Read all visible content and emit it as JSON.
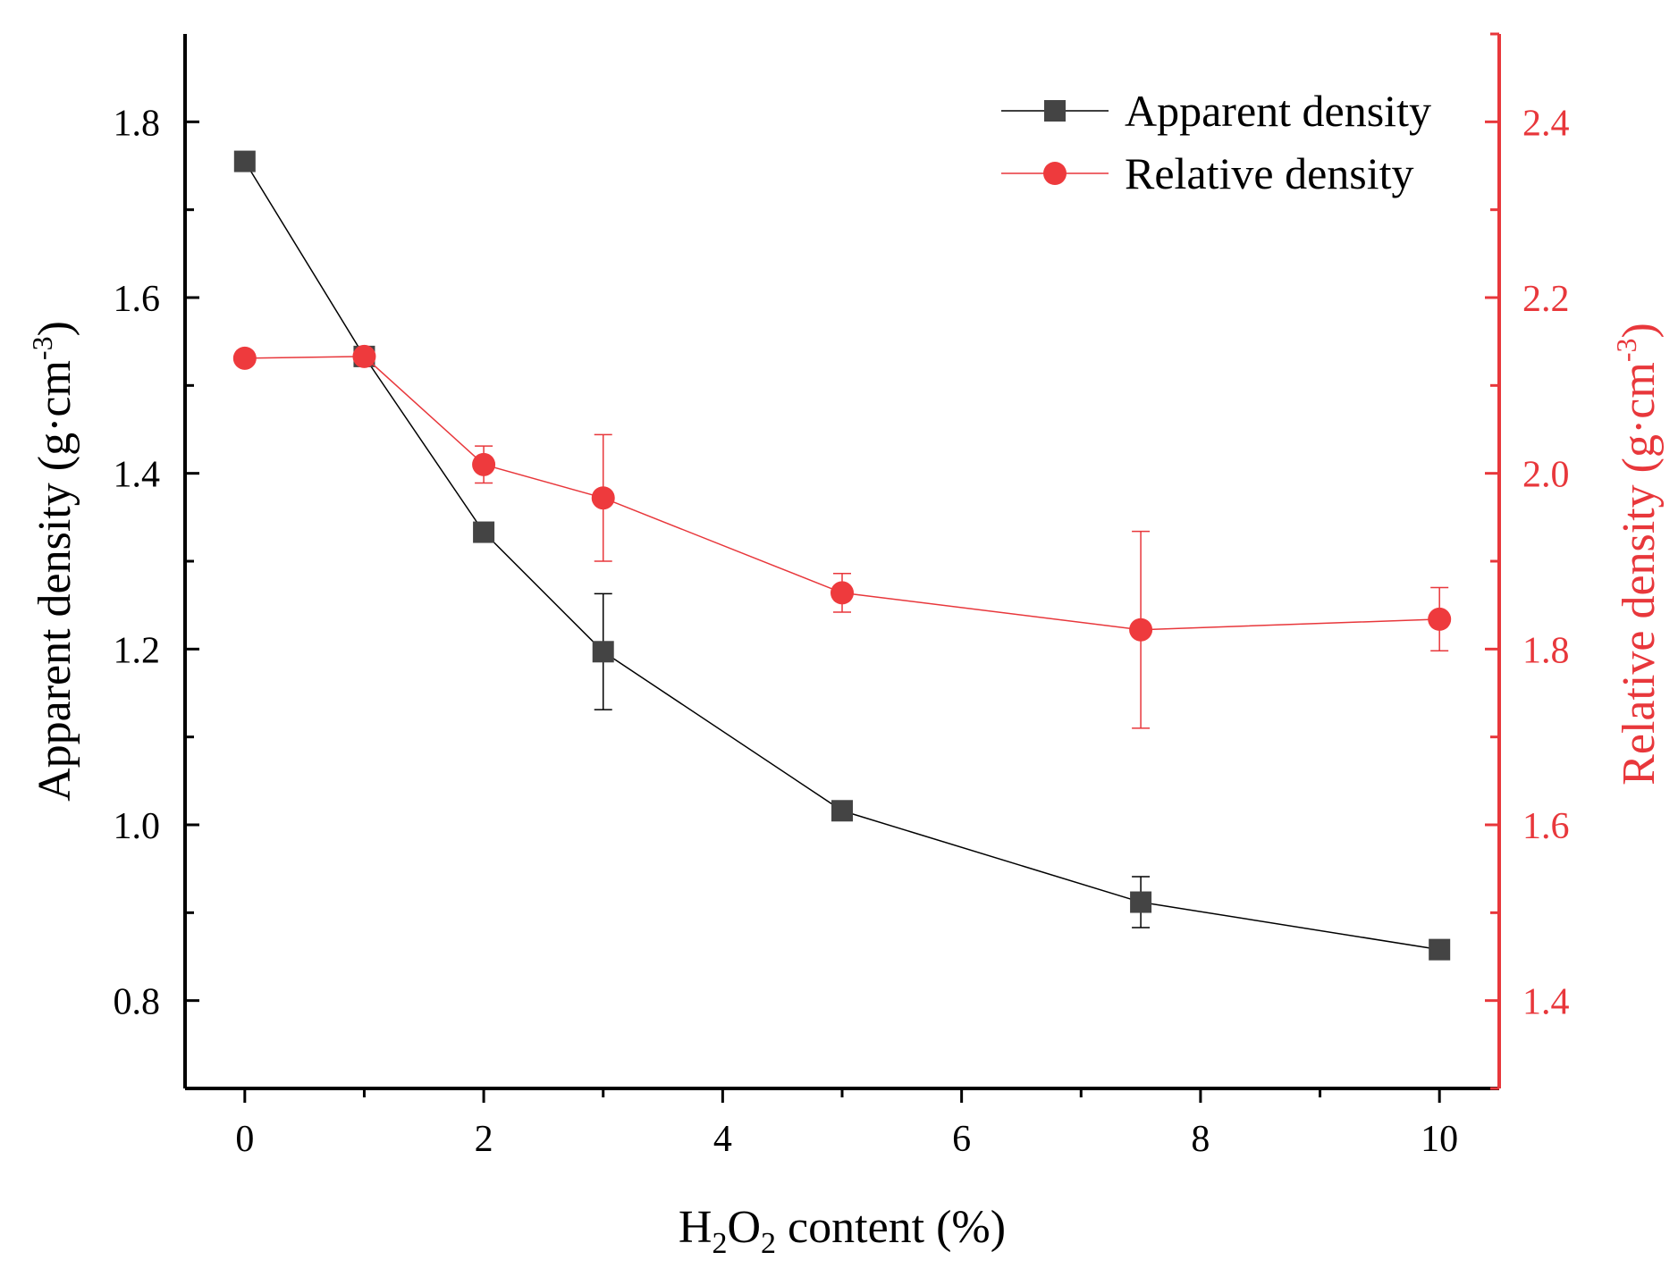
{
  "chart_data": {
    "type": "line",
    "x": [
      0,
      1,
      2,
      3,
      5,
      7.5,
      10
    ],
    "xlabel": {
      "pre": "H",
      "sub1": "2",
      "mid": "O",
      "sub2": "2",
      "post": " content (%)"
    },
    "xlim": [
      -0.5,
      10.5
    ],
    "xticks": [
      0,
      2,
      4,
      6,
      8,
      10
    ],
    "x_tick_labels": [
      "0",
      "2",
      "4",
      "6",
      "8",
      "10"
    ],
    "y_left": {
      "label": {
        "main": "Apparent density (g·cm",
        "sup": "-3",
        "close": ")"
      },
      "lim": [
        0.7,
        1.9
      ],
      "ticks": [
        0.8,
        1.0,
        1.2,
        1.4,
        1.6,
        1.8
      ],
      "tick_labels": [
        "0.8",
        "1.0",
        "1.2",
        "1.4",
        "1.6",
        "1.8"
      ],
      "color": "#000000"
    },
    "y_right": {
      "label": {
        "main": "Relative density (g·cm",
        "sup": "-3",
        "close": ")"
      },
      "lim": [
        1.3,
        2.5
      ],
      "ticks": [
        1.4,
        1.6,
        1.8,
        2.0,
        2.2,
        2.4
      ],
      "tick_labels": [
        "1.4",
        "1.6",
        "1.8",
        "2.0",
        "2.2",
        "2.4"
      ],
      "color": "#e8373b"
    },
    "series": [
      {
        "name": "Apparent density",
        "axis": "left",
        "marker": "square",
        "color": "#444444",
        "line_color": "#000000",
        "values": [
          1.755,
          1.533,
          1.333,
          1.197,
          1.016,
          0.912,
          0.858
        ],
        "errors": [
          0,
          0,
          0,
          0.066,
          0,
          0.029,
          0
        ]
      },
      {
        "name": "Relative density",
        "axis": "right",
        "marker": "circle",
        "color": "#ee3a3d",
        "line_color": "#e8373b",
        "values": [
          2.131,
          2.133,
          2.01,
          1.972,
          1.864,
          1.822,
          1.834
        ],
        "errors": [
          0,
          0,
          0.021,
          0.072,
          0.022,
          0.112,
          0.036
        ]
      }
    ],
    "legend": {
      "position": "top-right",
      "entries": [
        "Apparent density",
        "Relative density"
      ]
    }
  }
}
